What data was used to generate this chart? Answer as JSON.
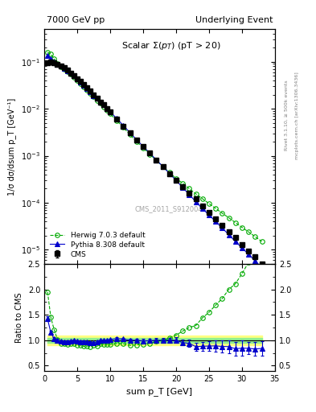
{
  "title_left": "7000 GeV pp",
  "title_right": "Underlying Event",
  "plot_title": "Scalar Σ(p_T) (pT > 20)",
  "xlabel": "sum p_T [GeV]",
  "ylabel_main": "1/σ dσ/dsum p_T [GeV⁻¹]",
  "ylabel_ratio": "Ratio to CMS",
  "right_label": "Rivet 3.1.10, ≥ 500k events",
  "right_label2": "mcplots.cern.ch [arXiv:1306.3436]",
  "watermark": "CMS_2011_S9120041",
  "cms_x": [
    0.5,
    1.0,
    1.5,
    2.0,
    2.5,
    3.0,
    3.5,
    4.0,
    4.5,
    5.0,
    5.5,
    6.0,
    6.5,
    7.0,
    7.5,
    8.0,
    8.5,
    9.0,
    9.5,
    10.0,
    11.0,
    12.0,
    13.0,
    14.0,
    15.0,
    16.0,
    17.0,
    18.0,
    19.0,
    20.0,
    21.0,
    22.0,
    23.0,
    24.0,
    25.0,
    26.0,
    27.0,
    28.0,
    29.0,
    30.0,
    31.0,
    32.0,
    33.0
  ],
  "cms_y": [
    0.095,
    0.1,
    0.095,
    0.088,
    0.082,
    0.074,
    0.066,
    0.058,
    0.05,
    0.044,
    0.038,
    0.033,
    0.028,
    0.024,
    0.02,
    0.017,
    0.014,
    0.012,
    0.01,
    0.0085,
    0.006,
    0.0043,
    0.0031,
    0.0022,
    0.0016,
    0.00115,
    0.00082,
    0.00059,
    0.00042,
    0.0003,
    0.00022,
    0.00016,
    0.00012,
    8.5e-05,
    6.2e-05,
    4.5e-05,
    3.3e-05,
    2.4e-05,
    1.8e-05,
    1.3e-05,
    9.5e-06,
    7e-06,
    5e-06
  ],
  "cms_yerr": [
    0.005,
    0.005,
    0.005,
    0.005,
    0.004,
    0.004,
    0.004,
    0.003,
    0.003,
    0.003,
    0.002,
    0.002,
    0.002,
    0.0015,
    0.0012,
    0.001,
    0.001,
    0.0008,
    0.0007,
    0.0006,
    0.0004,
    0.0003,
    0.00022,
    0.00016,
    0.00012,
    8.5e-05,
    6.2e-05,
    4.5e-05,
    3.2e-05,
    2.3e-05,
    1.7e-05,
    1.2e-05,
    9e-06,
    6.5e-06,
    4.8e-06,
    3.5e-06,
    2.6e-06,
    1.9e-06,
    1.4e-06,
    1e-06,
    7.5e-07,
    5.5e-07,
    4e-07
  ],
  "herwig_x": [
    0.5,
    1.0,
    1.5,
    2.0,
    2.5,
    3.0,
    3.5,
    4.0,
    4.5,
    5.0,
    5.5,
    6.0,
    6.5,
    7.0,
    7.5,
    8.0,
    8.5,
    9.0,
    9.5,
    10.0,
    11.0,
    12.0,
    13.0,
    14.0,
    15.0,
    16.0,
    17.0,
    18.0,
    19.0,
    20.0,
    21.0,
    22.0,
    23.0,
    24.0,
    25.0,
    26.0,
    27.0,
    28.0,
    29.0,
    30.0,
    31.0,
    32.0,
    33.0
  ],
  "herwig_y": [
    0.16,
    0.145,
    0.115,
    0.09,
    0.077,
    0.069,
    0.061,
    0.054,
    0.047,
    0.04,
    0.034,
    0.029,
    0.025,
    0.021,
    0.018,
    0.015,
    0.013,
    0.011,
    0.0092,
    0.0078,
    0.0056,
    0.004,
    0.0028,
    0.002,
    0.00148,
    0.00108,
    0.0008,
    0.00059,
    0.00044,
    0.00033,
    0.00026,
    0.0002,
    0.000155,
    0.000122,
    9.6e-05,
    7.6e-05,
    6e-05,
    4.8e-05,
    3.8e-05,
    3e-05,
    2.4e-05,
    1.9e-05,
    1.5e-05
  ],
  "pythia_x": [
    0.5,
    1.0,
    1.5,
    2.0,
    2.5,
    3.0,
    3.5,
    4.0,
    4.5,
    5.0,
    5.5,
    6.0,
    6.5,
    7.0,
    7.5,
    8.0,
    8.5,
    9.0,
    9.5,
    10.0,
    11.0,
    12.0,
    13.0,
    14.0,
    15.0,
    16.0,
    17.0,
    18.0,
    19.0,
    20.0,
    21.0,
    22.0,
    23.0,
    24.0,
    25.0,
    26.0,
    27.0,
    28.0,
    29.0,
    30.0,
    31.0,
    32.0,
    33.0
  ],
  "pythia_y": [
    0.135,
    0.115,
    0.098,
    0.088,
    0.08,
    0.072,
    0.064,
    0.057,
    0.05,
    0.043,
    0.037,
    0.032,
    0.027,
    0.023,
    0.019,
    0.0165,
    0.014,
    0.012,
    0.01,
    0.0086,
    0.0062,
    0.0044,
    0.0031,
    0.0022,
    0.00158,
    0.00114,
    0.00082,
    0.00059,
    0.00042,
    0.0003,
    0.00021,
    0.00015,
    0.000105,
    7.5e-05,
    5.5e-05,
    4e-05,
    2.9e-05,
    2.1e-05,
    1.5e-05,
    1.1e-05,
    8e-06,
    5.8e-06,
    4.2e-06
  ],
  "herwig_ratio": [
    1.95,
    1.45,
    1.21,
    1.02,
    0.94,
    0.93,
    0.92,
    0.93,
    0.94,
    0.91,
    0.9,
    0.88,
    0.89,
    0.875,
    0.9,
    0.88,
    0.93,
    0.917,
    0.92,
    0.92,
    0.933,
    0.93,
    0.9,
    0.91,
    0.925,
    0.939,
    0.976,
    1.0,
    1.048,
    1.1,
    1.18,
    1.25,
    1.29,
    1.44,
    1.55,
    1.69,
    1.82,
    2.0,
    2.11,
    2.31,
    2.53,
    2.71,
    3.0
  ],
  "pythia_ratio": [
    1.42,
    1.15,
    1.03,
    1.0,
    0.976,
    0.973,
    0.97,
    0.983,
    1.0,
    0.977,
    0.974,
    0.97,
    0.964,
    0.958,
    0.95,
    0.971,
    1.0,
    1.0,
    1.0,
    1.012,
    1.033,
    1.023,
    1.0,
    1.0,
    0.987,
    0.991,
    1.0,
    1.0,
    1.0,
    1.0,
    0.955,
    0.938,
    0.875,
    0.882,
    0.887,
    0.889,
    0.879,
    0.875,
    0.833,
    0.846,
    0.842,
    0.829,
    0.84
  ],
  "pythia_ratio_err": [
    0.05,
    0.04,
    0.03,
    0.03,
    0.02,
    0.02,
    0.02,
    0.02,
    0.02,
    0.02,
    0.02,
    0.02,
    0.02,
    0.02,
    0.02,
    0.02,
    0.02,
    0.02,
    0.02,
    0.02,
    0.025,
    0.025,
    0.03,
    0.03,
    0.035,
    0.04,
    0.04,
    0.045,
    0.05,
    0.055,
    0.06,
    0.07,
    0.08,
    0.09,
    0.1,
    0.11,
    0.12,
    0.13,
    0.14,
    0.15,
    0.12,
    0.13,
    0.14
  ],
  "green_band_inner": 0.05,
  "green_band_outer": 0.1,
  "cms_color": "#000000",
  "herwig_color": "#00aa00",
  "pythia_color": "#0000cc",
  "inner_band_color": "#90ee90",
  "outer_band_color": "#ffff80",
  "xlim": [
    0,
    35
  ],
  "ylim_main": [
    5e-06,
    0.5
  ],
  "ylim_ratio": [
    0.4,
    2.5
  ]
}
